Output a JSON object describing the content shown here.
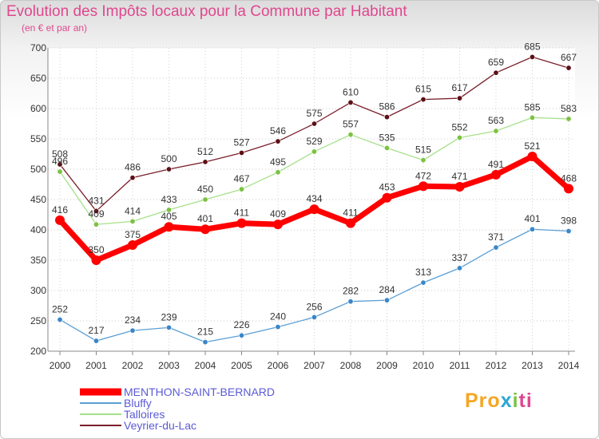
{
  "title": "Evolution des Impôts locaux pour la Commune par Habitant",
  "subtitle": "(en € et par an)",
  "logo": {
    "p1": "Pro",
    "p2": "x",
    "p3": "i",
    "p4": "ti"
  },
  "chart_data": {
    "type": "line",
    "title": "Evolution des Impôts locaux pour la Commune par Habitant",
    "subtitle": "(en € et par an)",
    "xlabel": "",
    "ylabel": "",
    "x": [
      2000,
      2001,
      2002,
      2003,
      2004,
      2005,
      2006,
      2007,
      2008,
      2009,
      2010,
      2011,
      2012,
      2013,
      2014
    ],
    "ylim": [
      200,
      700
    ],
    "yticks": [
      200,
      250,
      300,
      350,
      400,
      450,
      500,
      550,
      600,
      650,
      700
    ],
    "grid": "horizontal-dotted",
    "legend_position": "bottom-left",
    "series": [
      {
        "name": "Veyrier-du-Lac",
        "color": "#7a1f2b",
        "dot": "#5c1016",
        "values": [
          508,
          431,
          486,
          500,
          512,
          527,
          546,
          575,
          610,
          586,
          615,
          617,
          659,
          685,
          667
        ]
      },
      {
        "name": "Talloires",
        "color": "#a6e08a",
        "dot": "#7cc242",
        "values": [
          496,
          409,
          414,
          433,
          450,
          467,
          495,
          529,
          557,
          535,
          515,
          552,
          563,
          585,
          583
        ]
      },
      {
        "name": "Bluffy",
        "color": "#5a9fd4",
        "dot": "#3a86c8",
        "values": [
          252,
          217,
          234,
          239,
          215,
          226,
          240,
          256,
          282,
          284,
          313,
          337,
          371,
          401,
          398
        ]
      },
      {
        "name": "MENTHON-SAINT-BERNARD",
        "color": "#ff0000",
        "dot": "#ff0000",
        "values": [
          416,
          350,
          375,
          405,
          401,
          411,
          409,
          434,
          411,
          453,
          472,
          471,
          491,
          521,
          468
        ]
      }
    ],
    "legend_order": [
      "MENTHON-SAINT-BERNARD",
      "Bluffy",
      "Talloires",
      "Veyrier-du-Lac"
    ]
  }
}
